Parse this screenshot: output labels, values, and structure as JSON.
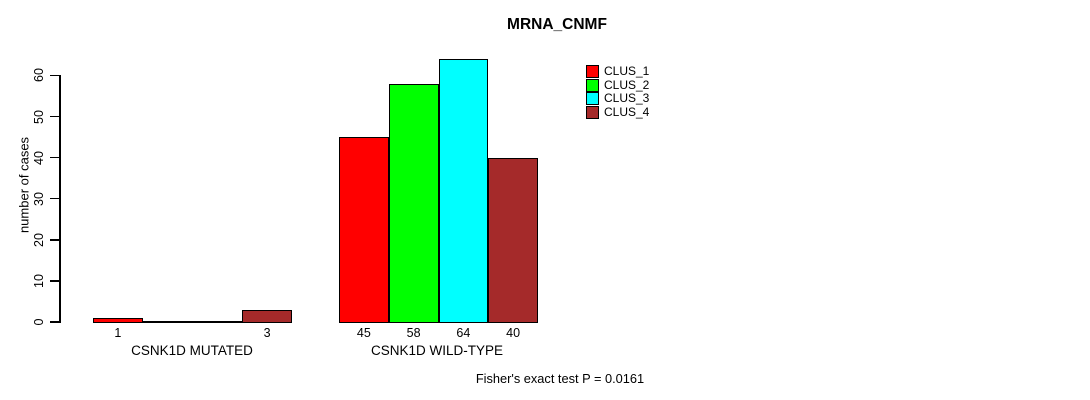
{
  "figure": {
    "background": "#FFFFFF",
    "text_color": "#000000"
  },
  "chart_data": {
    "type": "bar",
    "title": "MRNA_CNMF",
    "xlabel": "",
    "ylabel": "number of cases",
    "yticks": [
      0,
      10,
      20,
      30,
      40,
      50,
      60
    ],
    "ylim": [
      0,
      64
    ],
    "grid": false,
    "legend_position": "top-right-inside",
    "series": [
      {
        "name": "CLUS_1",
        "color": "#FF0000"
      },
      {
        "name": "CLUS_2",
        "color": "#00FF00"
      },
      {
        "name": "CLUS_3",
        "color": "#00FFFF"
      },
      {
        "name": "CLUS_4",
        "color": "#A52A2A"
      }
    ],
    "groups": [
      {
        "label": "CSNK1D MUTATED",
        "values": [
          1,
          0,
          0,
          3
        ],
        "bar_labels": [
          "1",
          "",
          "",
          "3"
        ]
      },
      {
        "label": "CSNK1D WILD-TYPE",
        "values": [
          45,
          58,
          64,
          40
        ],
        "bar_labels": [
          "45",
          "58",
          "64",
          "40"
        ]
      }
    ],
    "annotation": "Fisher's exact test P = 0.0161"
  }
}
